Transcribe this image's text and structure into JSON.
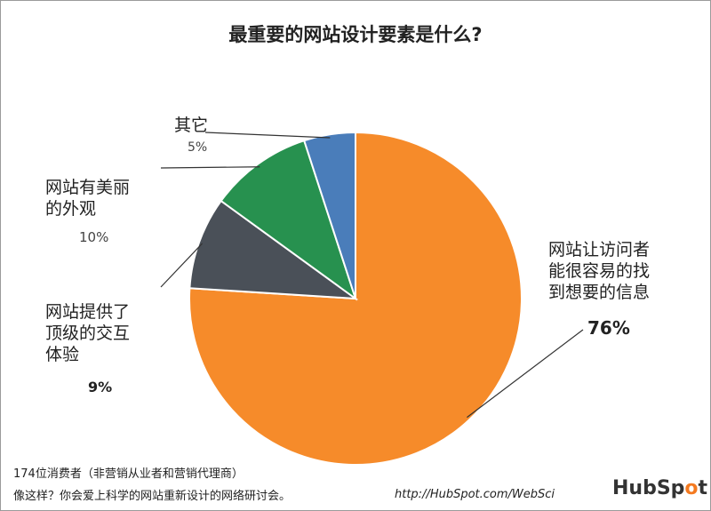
{
  "chart_data": {
    "type": "pie",
    "title": "最重要的网站设计要素是什么?",
    "slices": [
      {
        "label": "网站让访问者能很容易的找到想要的信息",
        "label_lines": [
          "网站让访问者",
          "能很容易的找",
          "到想要的信息"
        ],
        "value": 76,
        "value_label": "76%",
        "color": "#F68B2A"
      },
      {
        "label": "网站提供了顶级的交互体验",
        "label_lines": [
          "网站提供了",
          "顶级的交互",
          "体验"
        ],
        "value": 9,
        "value_label": "9%",
        "color": "#4A5058"
      },
      {
        "label": "网站有美丽的外观",
        "label_lines": [
          "网站有美丽",
          "的外观"
        ],
        "value": 10,
        "value_label": "10%",
        "color": "#27914F"
      },
      {
        "label": "其它",
        "label_lines": [
          "其它"
        ],
        "value": 5,
        "value_label": "5%",
        "color": "#4A7DBA"
      }
    ],
    "start": "top",
    "direction": "clockwise"
  },
  "footer": {
    "note1": "174位消费者（非营销从业者和营销代理商）",
    "note2": "像这样？你会爱上科学的网站重新设计的网络研讨会。",
    "url": "http://HubSpot.com/WebSci",
    "logo": "HubSpot"
  }
}
